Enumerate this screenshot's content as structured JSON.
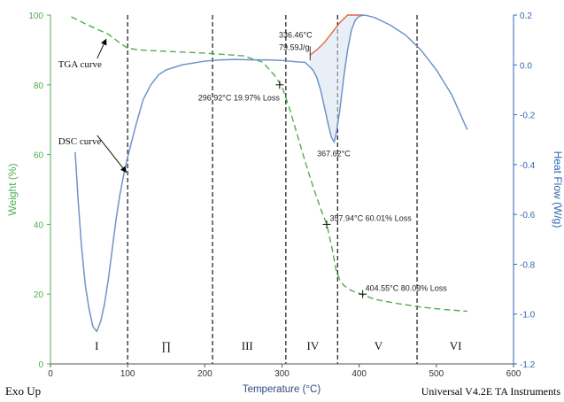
{
  "chart_data": {
    "type": "line",
    "colors": {
      "weight": "#4fae4f",
      "heat_flow": "#6f93c8",
      "peak_fill": "#e2673e",
      "axis_left": "#4fae4f",
      "axis_right": "#2f66b3"
    },
    "xlabel": "Temperature (°C)",
    "ylabel_left": "Weight (%)",
    "ylabel_right": "Heat Flow (W/g)",
    "xlim": [
      0,
      600
    ],
    "ylim_left": [
      0,
      100
    ],
    "ylim_right": [
      -1.2,
      0.2
    ],
    "x_ticks": [
      "0",
      "100",
      "200",
      "300",
      "400",
      "500",
      "600"
    ],
    "y_left_ticks": [
      "0",
      "20",
      "40",
      "60",
      "80",
      "100"
    ],
    "y_right_ticks": [
      "0.2",
      "0.0",
      "-0.2",
      "-0.4",
      "-0.6",
      "-0.8",
      "-1.0",
      "-1.2"
    ],
    "region_bounds": [
      100,
      210,
      305,
      372,
      475
    ],
    "region_labels": [
      {
        "text": "I",
        "x": 60
      },
      {
        "text": "∏",
        "x": 150
      },
      {
        "text": "III",
        "x": 255
      },
      {
        "text": "IV",
        "x": 340
      },
      {
        "text": "V",
        "x": 425
      },
      {
        "text": "VI",
        "x": 525
      }
    ],
    "series": [
      {
        "name": "TGA curve",
        "axis": "left",
        "style": "dashed",
        "x": [
          27,
          45,
          60,
          75,
          90,
          100,
          115,
          150,
          200,
          250,
          275,
          290,
          300,
          310,
          320,
          330,
          340,
          350,
          358,
          365,
          370,
          375,
          380,
          390,
          404.5,
          420,
          450,
          480,
          510,
          540
        ],
        "y": [
          99.5,
          97.5,
          96,
          94.5,
          92,
          90.5,
          90,
          89.6,
          89.1,
          88.3,
          86.5,
          82.8,
          79.5,
          73,
          65.5,
          58,
          51,
          44.5,
          40,
          33,
          27,
          24,
          22.5,
          21,
          19.9,
          18.5,
          17.3,
          16.3,
          15.6,
          15.1
        ]
      },
      {
        "name": "DSC curve",
        "axis": "right",
        "style": "solid",
        "x": [
          32,
          36,
          40,
          45,
          50,
          55,
          60,
          65,
          70,
          75,
          80,
          85,
          90,
          95,
          100,
          110,
          120,
          130,
          140,
          150,
          160,
          170,
          180,
          200,
          220,
          240,
          260,
          280,
          300,
          310,
          320,
          330,
          340,
          345,
          350,
          355,
          360,
          364,
          367.6,
          370,
          375,
          380,
          385,
          390,
          395,
          400,
          405,
          410,
          420,
          440,
          460,
          480,
          500,
          520,
          540
        ],
        "y": [
          -0.35,
          -0.55,
          -0.72,
          -0.88,
          -0.98,
          -1.05,
          -1.07,
          -1.03,
          -0.96,
          -0.86,
          -0.74,
          -0.62,
          -0.52,
          -0.44,
          -0.37,
          -0.25,
          -0.14,
          -0.08,
          -0.04,
          -0.02,
          -0.01,
          0.0,
          0.005,
          0.015,
          0.02,
          0.022,
          0.02,
          0.02,
          0.018,
          0.015,
          0.012,
          0.01,
          -0.02,
          -0.05,
          -0.1,
          -0.17,
          -0.24,
          -0.29,
          -0.31,
          -0.28,
          -0.18,
          -0.05,
          0.06,
          0.14,
          0.18,
          0.195,
          0.2,
          0.198,
          0.19,
          0.16,
          0.12,
          0.06,
          -0.02,
          -0.12,
          -0.26
        ]
      }
    ],
    "peak_baseline": {
      "x": [
        336.46,
        345,
        355,
        365,
        375,
        385,
        395,
        405
      ],
      "y": [
        0.04,
        0.06,
        0.09,
        0.13,
        0.17,
        0.2,
        0.2,
        0.2
      ]
    },
    "point_markers": [
      {
        "x": 296.92,
        "y": 80,
        "axis": "left"
      },
      {
        "x": 357.94,
        "y": 40,
        "axis": "left"
      },
      {
        "x": 404.55,
        "y": 20,
        "axis": "left"
      }
    ],
    "annotations": [
      {
        "text": "296.92°C 19.97% Loss",
        "x": 297,
        "y": 75.5,
        "anchor": "end"
      },
      {
        "text": "357.94°C 60.01% Loss",
        "x": 362,
        "y": 41,
        "anchor": "start"
      },
      {
        "text": "404.55°C 80.03% Loss",
        "x": 408,
        "y": 21,
        "anchor": "start"
      },
      {
        "text": "367.62°C",
        "x": 367,
        "y": 59.5,
        "anchor": "middle"
      },
      {
        "text": "336.46°C",
        "x": 296,
        "y": 93.5,
        "anchor": "start"
      },
      {
        "text": "79.59J/g",
        "x": 296,
        "y": 90,
        "anchor": "start"
      }
    ],
    "curve_labels": [
      {
        "text": "TGA curve",
        "x": 10,
        "y": 85,
        "arrow_to": [
          72,
          93
        ]
      },
      {
        "text": "DSC curve",
        "x": 10,
        "y": 63,
        "arrow_to": [
          98,
          55
        ]
      }
    ]
  },
  "footer": {
    "left": "Exo Up",
    "right": "Universal V4.2E TA Instruments"
  }
}
